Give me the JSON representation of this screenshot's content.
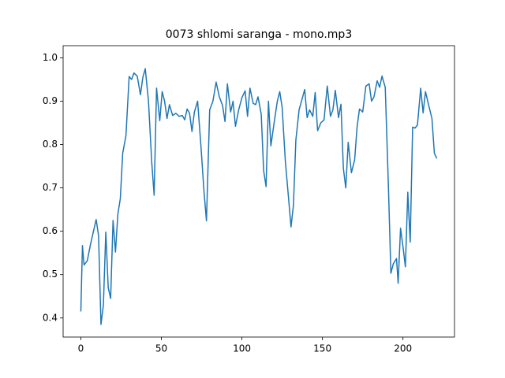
{
  "chart_data": {
    "type": "line",
    "title": "0073 shlomi saranga - mono.mp3",
    "x": [
      0,
      1,
      2,
      4,
      6,
      9.5,
      11,
      12.5,
      14,
      15.5,
      17,
      18.5,
      20,
      21.5,
      23,
      24.5,
      26,
      28,
      30,
      31.5,
      33,
      35,
      37,
      38.5,
      40,
      42,
      44,
      45.5,
      47,
      49,
      50.5,
      52,
      53.5,
      55,
      57,
      59,
      61,
      63,
      64.5,
      66,
      67.5,
      69,
      70.5,
      72.5,
      74.5,
      76.5,
      78,
      80,
      82,
      84,
      86,
      88,
      89.5,
      91,
      93,
      94.5,
      96,
      98,
      100,
      102,
      103.5,
      105,
      107,
      108.5,
      110,
      112,
      113.5,
      115,
      116.5,
      118,
      120,
      122,
      123.5,
      125,
      127,
      129,
      130.5,
      132,
      133.5,
      135.5,
      137,
      139,
      140.5,
      142,
      144,
      145.5,
      147,
      149,
      151,
      153,
      155,
      156.5,
      158,
      160,
      161.5,
      163,
      164.5,
      166,
      168,
      170,
      171.5,
      173,
      175,
      177,
      179,
      180.5,
      182,
      184,
      185.5,
      187,
      189,
      191,
      192.5,
      194,
      196,
      197,
      198.5,
      200,
      201.5,
      203,
      204.5,
      206,
      207.5,
      209,
      211,
      212.5,
      214,
      216,
      218,
      219.5,
      221
    ],
    "values": [
      0.415,
      0.567,
      0.522,
      0.532,
      0.57,
      0.627,
      0.59,
      0.385,
      0.43,
      0.598,
      0.47,
      0.445,
      0.625,
      0.552,
      0.64,
      0.675,
      0.78,
      0.82,
      0.957,
      0.95,
      0.965,
      0.958,
      0.915,
      0.955,
      0.975,
      0.9,
      0.76,
      0.683,
      0.93,
      0.855,
      0.922,
      0.9,
      0.86,
      0.892,
      0.867,
      0.872,
      0.865,
      0.867,
      0.857,
      0.882,
      0.872,
      0.83,
      0.875,
      0.9,
      0.8,
      0.69,
      0.624,
      0.88,
      0.9,
      0.944,
      0.91,
      0.89,
      0.853,
      0.94,
      0.875,
      0.9,
      0.842,
      0.88,
      0.908,
      0.924,
      0.865,
      0.93,
      0.895,
      0.892,
      0.91,
      0.87,
      0.74,
      0.703,
      0.9,
      0.797,
      0.85,
      0.9,
      0.922,
      0.885,
      0.76,
      0.675,
      0.61,
      0.66,
      0.81,
      0.88,
      0.9,
      0.927,
      0.862,
      0.88,
      0.865,
      0.92,
      0.832,
      0.85,
      0.857,
      0.935,
      0.865,
      0.88,
      0.925,
      0.862,
      0.893,
      0.745,
      0.7,
      0.805,
      0.735,
      0.765,
      0.84,
      0.882,
      0.875,
      0.935,
      0.94,
      0.9,
      0.91,
      0.947,
      0.932,
      0.958,
      0.932,
      0.7,
      0.503,
      0.525,
      0.537,
      0.48,
      0.607,
      0.565,
      0.518,
      0.69,
      0.575,
      0.84,
      0.838,
      0.845,
      0.93,
      0.873,
      0.922,
      0.89,
      0.86,
      0.78,
      0.768
    ],
    "color": "#1f77b4",
    "xlim": [
      -11,
      232
    ],
    "ylim": [
      0.356,
      1.028
    ],
    "xticks": [
      0,
      50,
      100,
      150,
      200
    ],
    "yticks": [
      0.4,
      0.5,
      0.6,
      0.7,
      0.8,
      0.9,
      {
        "value": 1.0,
        "label": "1.0"
      }
    ]
  }
}
